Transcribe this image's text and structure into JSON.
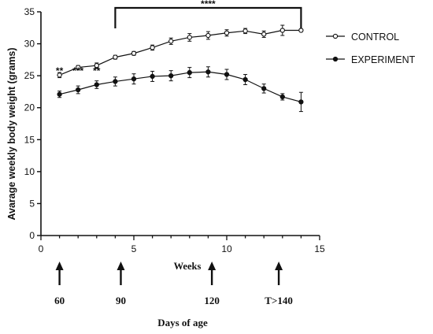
{
  "chart_data": {
    "type": "line",
    "xlabel": "Weeks",
    "ylabel": "Avarage weekly body weight (grams)",
    "xlim": [
      0,
      15
    ],
    "ylim": [
      0,
      35
    ],
    "x_ticks": [
      0,
      5,
      10,
      15
    ],
    "y_ticks": [
      0,
      5,
      10,
      15,
      20,
      25,
      30,
      35
    ],
    "grid": false,
    "legend": "right",
    "x": [
      1,
      2,
      3,
      4,
      5,
      6,
      7,
      8,
      9,
      10,
      11,
      12,
      13,
      14
    ],
    "series": [
      {
        "name": "CONTROL",
        "marker": "open-circle",
        "values": [
          25.1,
          26.3,
          26.6,
          27.9,
          28.5,
          29.4,
          30.4,
          31.0,
          31.3,
          31.7,
          32.0,
          31.5,
          32.1,
          32.1
        ],
        "errors": [
          0.4,
          0.3,
          0.4,
          0.3,
          0.3,
          0.4,
          0.5,
          0.6,
          0.6,
          0.5,
          0.4,
          0.5,
          0.8,
          0.2
        ]
      },
      {
        "name": "EXPERIMENT",
        "marker": "filled-circle",
        "values": [
          22.1,
          22.8,
          23.6,
          24.1,
          24.5,
          24.9,
          25.0,
          25.5,
          25.6,
          25.2,
          24.4,
          23.0,
          21.7,
          20.9
        ],
        "errors": [
          0.5,
          0.6,
          0.6,
          0.7,
          0.8,
          0.8,
          0.8,
          0.8,
          0.8,
          0.8,
          0.8,
          0.7,
          0.5,
          1.5
        ]
      }
    ],
    "annotations": [
      {
        "text": "**",
        "x": 1
      },
      {
        "text": "***",
        "x": 2
      },
      {
        "text": "**",
        "x": 3
      },
      {
        "text": "****",
        "x_start": 4,
        "x_end": 14,
        "bracket": true
      }
    ],
    "age_markers": {
      "title": "Days of age",
      "items": [
        {
          "label": "60",
          "x": 1
        },
        {
          "label": "90",
          "x": 4.3
        },
        {
          "label": "120",
          "x": 9.2
        },
        {
          "label": "T>140",
          "x": 12.8
        }
      ]
    }
  }
}
